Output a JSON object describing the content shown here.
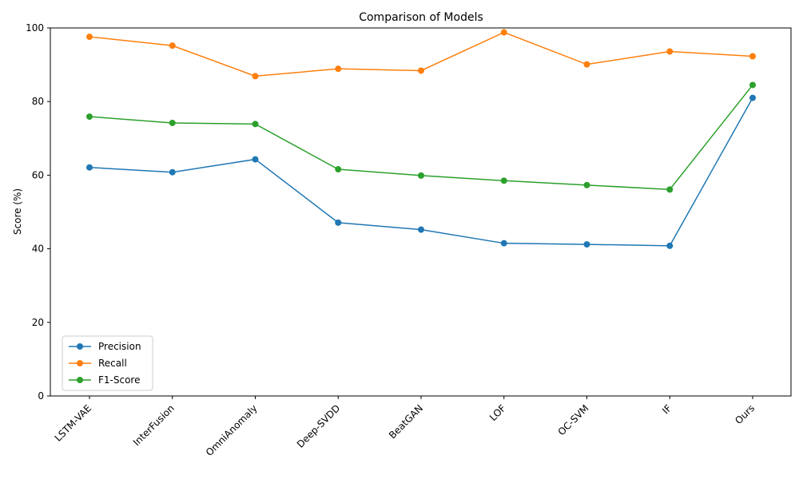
{
  "chart_data": {
    "type": "line",
    "title": "Comparison of Models",
    "xlabel": "",
    "ylabel": "Score (%)",
    "ylim": [
      0,
      100
    ],
    "yticks": [
      0,
      20,
      40,
      60,
      80,
      100
    ],
    "grid": false,
    "legend_position": "lower-left",
    "categories": [
      "LSTM-VAE",
      "InterFusion",
      "OmniAnomaly",
      "Deep-SVDD",
      "BeatGAN",
      "LOF",
      "OC-SVM",
      "IF",
      "Ours"
    ],
    "series": [
      {
        "name": "Precision",
        "color": "#1f77b4",
        "values": [
          62.1,
          60.8,
          64.3,
          47.1,
          45.2,
          41.5,
          41.2,
          40.8,
          81.0
        ]
      },
      {
        "name": "Recall",
        "color": "#ff7f0e",
        "values": [
          97.6,
          95.2,
          86.9,
          88.9,
          88.4,
          98.8,
          90.1,
          93.6,
          92.3
        ]
      },
      {
        "name": "F1-Score",
        "color": "#2ca02c",
        "values": [
          75.9,
          74.2,
          73.9,
          61.6,
          59.9,
          58.5,
          57.3,
          56.1,
          84.5
        ]
      }
    ]
  }
}
